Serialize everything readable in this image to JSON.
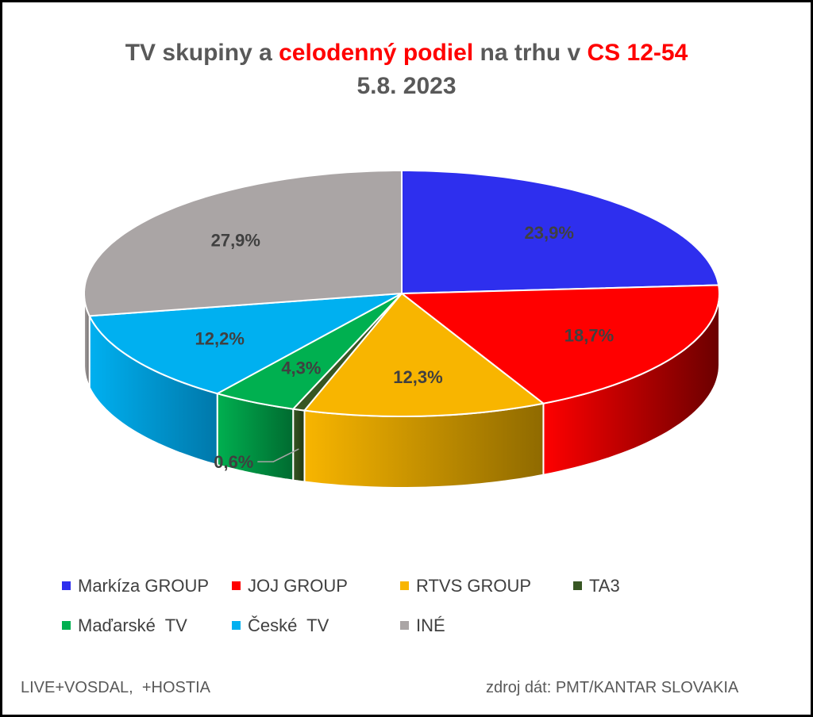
{
  "title": {
    "part1": "TV skupiny a ",
    "part2": "celodenný podiel",
    "part3": " na trhu v ",
    "part4": "CS 12-54",
    "line2": "5.8. 2023"
  },
  "chart_data": {
    "type": "pie",
    "style": "3d-exploded",
    "categories": [
      "Markíza GROUP",
      "JOJ GROUP",
      "RTVS GROUP",
      "TA3",
      "Maďarské  TV",
      "České  TV",
      "INÉ"
    ],
    "values": [
      23.9,
      18.7,
      12.3,
      0.6,
      4.3,
      12.2,
      27.9
    ],
    "labels": [
      "23,9%",
      "18,7%",
      "12,3%",
      "0,6%",
      "4,3%",
      "12,2%",
      "27,9%"
    ],
    "colors": [
      "#2e2fee",
      "#ff0000",
      "#f8b500",
      "#375623",
      "#00b050",
      "#00b0f0",
      "#aaa5a5"
    ],
    "side_colors": [
      "#1a1b8c",
      "#6b0000",
      "#8f6a00",
      "#203814",
      "#006b30",
      "#0078aa",
      "#6e6a6a"
    ],
    "legend_position": "bottom"
  },
  "footer": {
    "left": "LIVE+VOSDAL,  +HOSTIA",
    "right": "zdroj dát: PMT/KANTAR SLOVAKIA"
  }
}
